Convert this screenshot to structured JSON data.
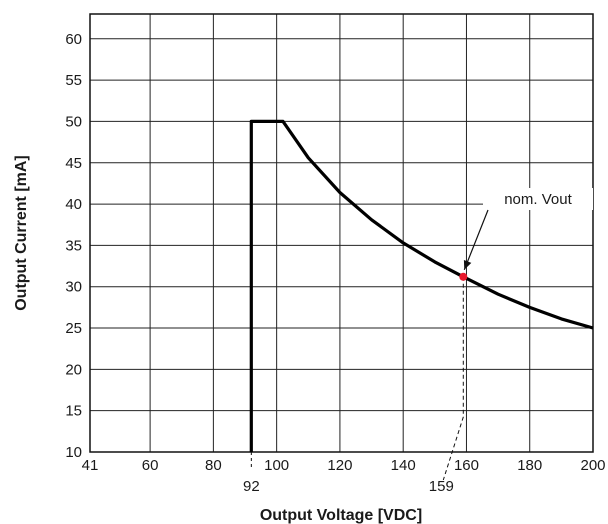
{
  "chart_data": {
    "type": "line",
    "title": "",
    "xlabel": "Output Voltage [VDC]",
    "ylabel": "Output Current [mA]",
    "xlim": [
      41,
      200
    ],
    "ylim": [
      10,
      63
    ],
    "grid": true,
    "x_ticks": [
      41,
      60,
      80,
      100,
      120,
      140,
      160,
      180,
      200
    ],
    "y_ticks": [
      10,
      15,
      20,
      25,
      30,
      35,
      40,
      45,
      50,
      55,
      60
    ],
    "series": [
      {
        "points": [
          [
            92,
            10
          ],
          [
            92,
            50
          ],
          [
            102,
            50
          ],
          [
            110,
            45.6
          ],
          [
            120,
            41.4
          ],
          [
            130,
            38.1
          ],
          [
            140,
            35.3
          ],
          [
            150,
            33.0
          ],
          [
            159,
            31.2
          ],
          [
            170,
            29.1
          ],
          [
            180,
            27.5
          ],
          [
            190,
            26.1
          ],
          [
            200,
            25.0
          ]
        ],
        "color": "#000000"
      }
    ],
    "annotations": [
      {
        "text": "nom. Vout",
        "point": [
          159,
          31.2
        ],
        "marker_color": "#e8192c"
      },
      {
        "text": "92",
        "x": 92
      },
      {
        "text": "159",
        "x": 159
      }
    ]
  }
}
